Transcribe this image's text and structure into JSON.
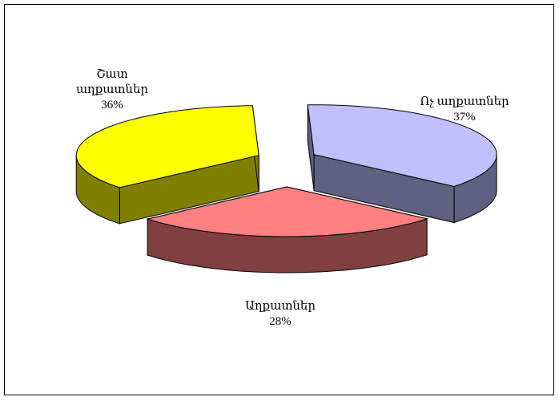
{
  "chart_data": {
    "type": "pie3d",
    "categories": [
      "Ոչ աղքատներ",
      "Աղքատներ",
      "Շատ աղքատներ"
    ],
    "values": [
      37,
      28,
      36
    ],
    "value_labels": [
      "37%",
      "28%",
      "36%"
    ],
    "colors": [
      "#c0c0ff",
      "#ff8080",
      "#ffff00"
    ],
    "side_colors": [
      "#606080",
      "#804040",
      "#808000"
    ]
  }
}
